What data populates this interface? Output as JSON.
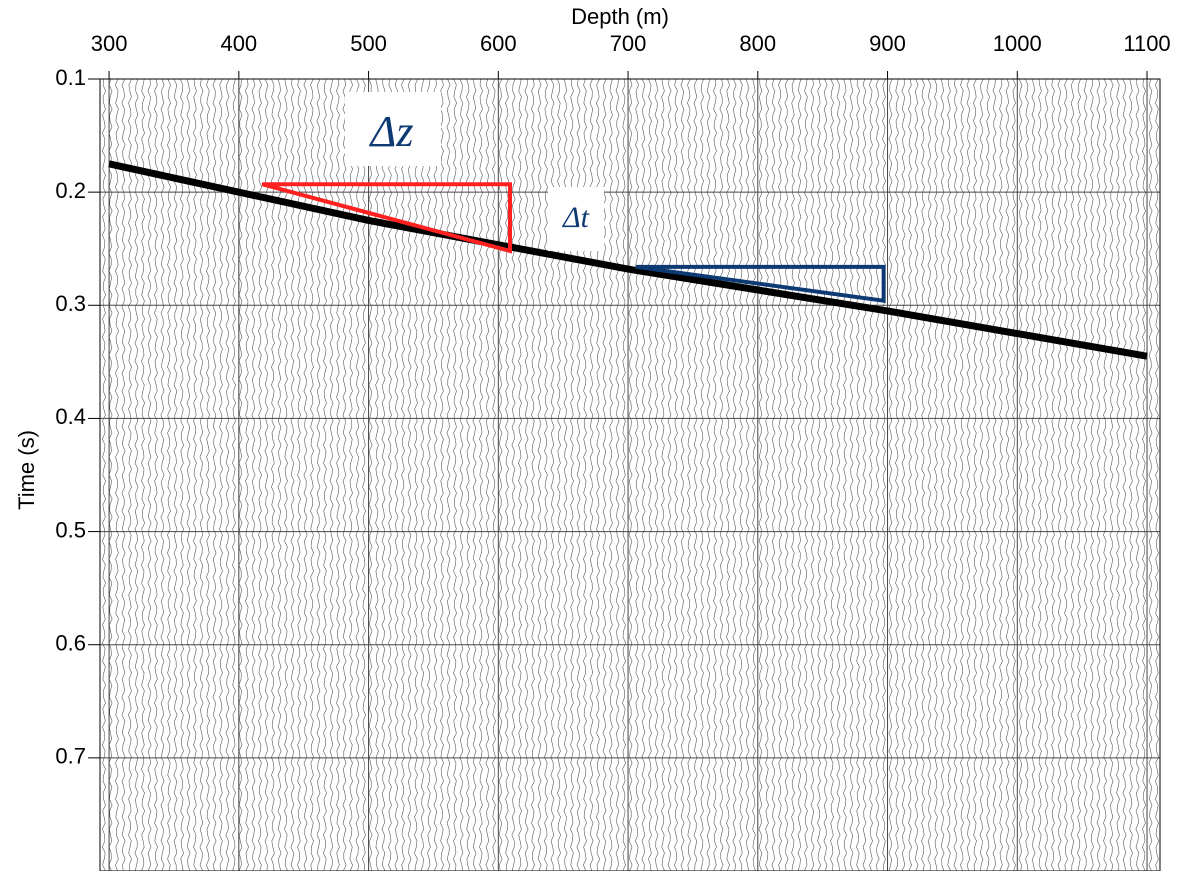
{
  "chart_data": {
    "type": "seismic",
    "xlabel": "Depth (m)",
    "ylabel": "Time (s)",
    "xlim": [
      293,
      1110
    ],
    "ylim": [
      0.1,
      0.8
    ],
    "xticks": [
      300,
      400,
      500,
      600,
      700,
      800,
      900,
      1000,
      1100
    ],
    "yticks": [
      0.1,
      0.2,
      0.3,
      0.4,
      0.5,
      0.6,
      0.7
    ],
    "grid": true,
    "series": [
      {
        "color": "#000000",
        "x": [
          300,
          500,
          700,
          900,
          1100
        ],
        "values": [
          0.175,
          0.225,
          0.268,
          0.305,
          0.345
        ]
      }
    ],
    "annotations": [
      {
        "text": "Δz",
        "shape": "triangle",
        "color": "#ff2020",
        "x": [
          418,
          609,
          609
        ],
        "y": [
          0.193,
          0.193,
          0.252
        ]
      },
      {
        "text": "Δt",
        "shape": "triangle",
        "color": "#0d3a73",
        "x": [
          706,
          897,
          897
        ],
        "y": [
          0.266,
          0.266,
          0.296
        ]
      }
    ]
  }
}
